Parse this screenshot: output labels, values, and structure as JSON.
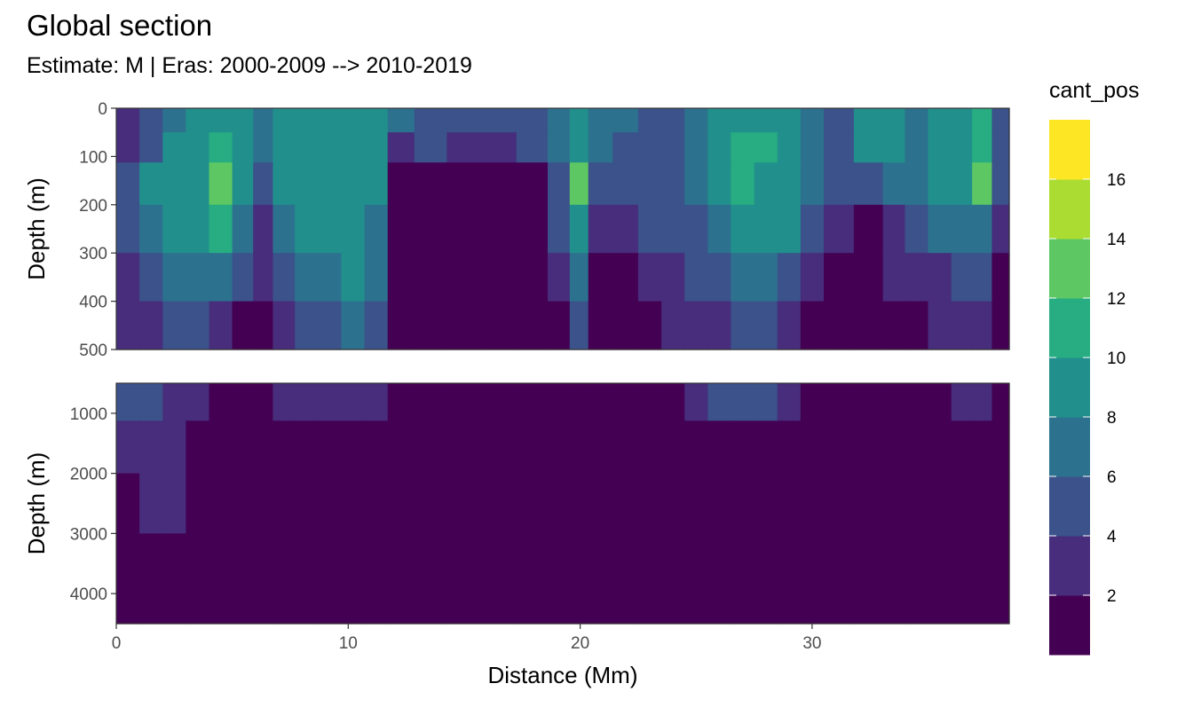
{
  "title": "Global section",
  "subtitle": "Estimate: M  | Eras: 2000-2009 --> 2010-2019",
  "colors": {
    "levels": [
      "#440154",
      "#472D7B",
      "#3B528B",
      "#2C728E",
      "#21908C",
      "#27AD81",
      "#5DC863",
      "#AADC32",
      "#FDE725"
    ],
    "panel_border": "#333333",
    "gap_fill": "#ffffff"
  },
  "chart_data": {
    "type": "heatmap",
    "x_label": "Distance (Mm)",
    "y_label": "Depth (m)",
    "x_range": [
      0,
      38.5
    ],
    "x_ticks": [
      0,
      10,
      20,
      30
    ],
    "legend": {
      "title": "cant_pos",
      "breaks": [
        0,
        2,
        4,
        6,
        8,
        10,
        12,
        14,
        16,
        18
      ],
      "labels": [
        "2",
        "4",
        "6",
        "8",
        "10",
        "12",
        "14",
        "16"
      ],
      "position": "right"
    },
    "panels": [
      {
        "name": "upper",
        "depth_range": [
          0,
          500
        ],
        "y_ticks": [
          0,
          100,
          200,
          300,
          400,
          500
        ],
        "station_distance_mm": [
          0.5,
          1.5,
          2.5,
          3.5,
          4.5,
          5.5,
          6.3,
          7.2,
          8.2,
          9.2,
          10.2,
          11.2,
          12.2,
          13.5,
          15,
          16.5,
          18,
          19.2,
          19.9,
          20.8,
          22,
          23,
          24,
          25,
          26,
          27,
          28,
          29,
          30,
          31,
          32.6,
          33.5,
          34.5,
          35.5,
          36.5,
          37.3,
          38.2
        ],
        "depth_m": [
          25,
          75,
          150,
          250,
          350,
          450
        ],
        "cant_pos": [
          [
            3,
            5,
            7,
            9,
            9,
            9,
            7,
            9,
            9,
            9,
            9,
            9,
            7,
            5,
            5,
            5,
            5,
            7,
            9,
            7,
            7,
            5,
            5,
            7,
            9,
            9,
            9,
            9,
            7,
            5,
            9,
            9,
            7,
            9,
            9,
            11,
            5
          ],
          [
            3,
            5,
            9,
            9,
            11,
            9,
            7,
            9,
            9,
            9,
            9,
            9,
            3,
            5,
            3,
            3,
            5,
            7,
            9,
            7,
            5,
            5,
            5,
            7,
            9,
            11,
            11,
            9,
            7,
            5,
            9,
            9,
            7,
            9,
            9,
            11,
            5
          ],
          [
            5,
            9,
            9,
            9,
            13,
            9,
            5,
            9,
            9,
            9,
            9,
            9,
            1,
            1,
            1,
            1,
            1,
            5,
            13,
            5,
            5,
            5,
            5,
            7,
            9,
            11,
            9,
            9,
            7,
            5,
            5,
            7,
            7,
            9,
            9,
            13,
            5
          ],
          [
            5,
            7,
            9,
            9,
            11,
            7,
            3,
            7,
            9,
            9,
            9,
            7,
            1,
            1,
            1,
            1,
            1,
            5,
            9,
            3,
            3,
            5,
            5,
            5,
            7,
            9,
            9,
            9,
            5,
            3,
            1,
            3,
            5,
            7,
            7,
            7,
            3
          ],
          [
            3,
            5,
            7,
            7,
            7,
            5,
            3,
            5,
            7,
            7,
            9,
            7,
            1,
            1,
            1,
            1,
            1,
            3,
            7,
            1,
            1,
            3,
            3,
            5,
            5,
            7,
            7,
            5,
            3,
            1,
            1,
            3,
            3,
            3,
            5,
            5,
            1
          ],
          [
            3,
            3,
            5,
            5,
            3,
            1,
            1,
            3,
            5,
            5,
            7,
            5,
            1,
            1,
            1,
            1,
            1,
            1,
            5,
            1,
            1,
            1,
            3,
            3,
            3,
            5,
            5,
            3,
            1,
            1,
            1,
            1,
            1,
            3,
            3,
            3,
            1
          ]
        ]
      },
      {
        "name": "lower",
        "depth_range": [
          500,
          4500
        ],
        "y_ticks": [
          1000,
          2000,
          3000,
          4000
        ],
        "station_distance_mm": [
          0.5,
          1.5,
          2.5,
          3.5,
          4.5,
          5.5,
          6.3,
          7.2,
          8.2,
          9.2,
          10.2,
          11.2,
          12.2,
          13.5,
          15,
          16.5,
          18,
          19.2,
          19.9,
          20.8,
          22,
          23,
          24,
          25,
          26,
          27,
          28,
          29,
          30,
          31,
          32.6,
          33.5,
          34.5,
          35.5,
          36.5,
          37.3,
          38.2
        ],
        "depth_m": [
          750,
          1500,
          2500,
          3500
        ],
        "cant_pos": [
          [
            5,
            5,
            3,
            3,
            1,
            1,
            1,
            3,
            3,
            3,
            3,
            3,
            1,
            1,
            1,
            1,
            1,
            1,
            1,
            1,
            1,
            1,
            1,
            3,
            5,
            5,
            5,
            3,
            1,
            1,
            1,
            1,
            1,
            1,
            3,
            3,
            1
          ],
          [
            3,
            3,
            3,
            1,
            1,
            1,
            1,
            1,
            1,
            1,
            1,
            1,
            1,
            1,
            1,
            1,
            1,
            1,
            1,
            1,
            1,
            1,
            1,
            1,
            1,
            1,
            1,
            1,
            1,
            1,
            1,
            1,
            1,
            1,
            1,
            1,
            1
          ],
          [
            1,
            3,
            3,
            1,
            1,
            1,
            1,
            1,
            1,
            1,
            1,
            1,
            1,
            1,
            1,
            1,
            1,
            1,
            1,
            1,
            1,
            1,
            1,
            1,
            1,
            1,
            1,
            1,
            1,
            1,
            1,
            1,
            1,
            1,
            1,
            1,
            1
          ],
          [
            1,
            1,
            1,
            1,
            1,
            1,
            1,
            1,
            1,
            1,
            1,
            1,
            1,
            1,
            1,
            1,
            1,
            1,
            1,
            1,
            1,
            1,
            1,
            1,
            1,
            1,
            1,
            1,
            1,
            1,
            1,
            1,
            1,
            1,
            1,
            1,
            1
          ]
        ]
      }
    ]
  }
}
